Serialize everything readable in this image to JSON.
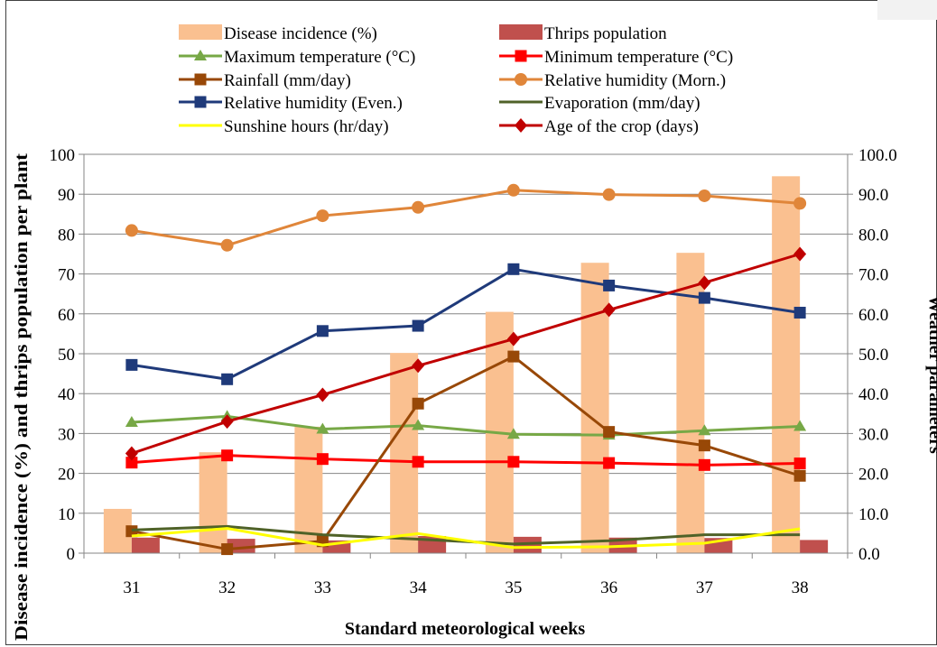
{
  "chart_data": {
    "type": "bar",
    "xlabel": "Standard meteorological weeks",
    "ylabel_left": "Disease incidence (%)  and thrips population per plant",
    "ylabel_right": "Weather parameters",
    "ylim_left": [
      0,
      100
    ],
    "ylim_right": [
      0,
      100
    ],
    "left_ticks": [
      "0",
      "10",
      "20",
      "30",
      "40",
      "50",
      "60",
      "70",
      "80",
      "90",
      "100"
    ],
    "right_ticks": [
      "0.0",
      "10.0",
      "20.0",
      "30.0",
      "40.0",
      "50.0",
      "60.0",
      "70.0",
      "80.0",
      "90.0",
      "100.0"
    ],
    "grid": true,
    "legend_position": "top",
    "categories": [
      "31",
      "32",
      "33",
      "34",
      "35",
      "36",
      "37",
      "38"
    ],
    "bar_series": [
      {
        "name": "Disease incidence (%)",
        "color": "#fac090",
        "values": [
          11.1,
          25.3,
          31.7,
          50.2,
          60.5,
          72.8,
          75.3,
          94.5
        ]
      },
      {
        "name": "Thrips population",
        "color": "#c0504d",
        "values": [
          3.9,
          3.6,
          3.2,
          4.3,
          4.1,
          3.9,
          3.8,
          3.3
        ]
      }
    ],
    "line_series": [
      {
        "name": "Maximum temperature (°C)",
        "color": "#77a846",
        "marker": "triangle",
        "values": [
          32.8,
          34.3,
          31.1,
          32.0,
          29.8,
          29.6,
          30.7,
          31.8
        ]
      },
      {
        "name": "Minimum temperature (°C)",
        "color": "#ff0000",
        "marker": "square",
        "values": [
          22.7,
          24.5,
          23.6,
          22.9,
          22.9,
          22.6,
          22.1,
          22.5
        ]
      },
      {
        "name": "Rainfall (mm/day)",
        "color": "#984807",
        "marker": "square",
        "values": [
          5.5,
          1.0,
          3.0,
          37.5,
          49.3,
          30.4,
          27.0,
          19.4
        ]
      },
      {
        "name": "Relative humidity (Morn.)",
        "color": "#e0863a",
        "marker": "circle",
        "values": [
          80.9,
          77.2,
          84.6,
          86.7,
          91.0,
          89.9,
          89.6,
          87.7
        ]
      },
      {
        "name": "Relative humidity (Even.)",
        "color": "#1f3a7a",
        "marker": "square",
        "values": [
          47.2,
          43.6,
          55.7,
          57.0,
          71.2,
          67.1,
          64.0,
          60.3
        ]
      },
      {
        "name": "Evaporation (mm/day)",
        "color": "#4f6228",
        "marker": "none",
        "values": [
          5.8,
          6.7,
          4.6,
          3.5,
          2.3,
          3.1,
          4.6,
          4.6
        ]
      },
      {
        "name": "Sunshine hours (hr/day)",
        "color": "#ffff00",
        "marker": "none",
        "values": [
          4.3,
          6.2,
          2.0,
          4.9,
          1.4,
          1.6,
          2.5,
          6.1
        ]
      },
      {
        "name": "Age of the crop (days)",
        "color": "#c00000",
        "marker": "diamond",
        "values": [
          25.0,
          33.0,
          39.7,
          47.0,
          53.7,
          61.0,
          67.8,
          75.0
        ]
      }
    ]
  }
}
